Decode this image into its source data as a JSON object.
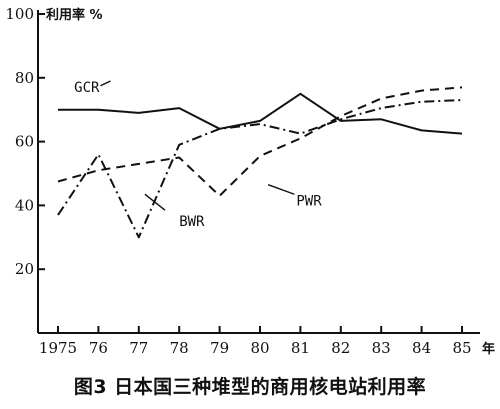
{
  "caption": "图3  日本国三种堆型的商用核电站利用率",
  "chart_data": {
    "type": "line",
    "title": "",
    "xlabel": "年",
    "ylabel": "利用率 %",
    "ylim": [
      0,
      100
    ],
    "yticks": [
      20,
      40,
      60,
      80,
      100
    ],
    "ytick_labels": [
      "20",
      "40",
      "60",
      "80",
      "100"
    ],
    "x": [
      1975,
      1976,
      1977,
      1978,
      1979,
      1980,
      1981,
      1982,
      1983,
      1984,
      1985
    ],
    "xtick_labels": [
      "1975",
      "76",
      "77",
      "78",
      "79",
      "80",
      "81",
      "82",
      "83",
      "84",
      "85"
    ],
    "series": [
      {
        "name": "GCR",
        "style": "solid",
        "values": [
          70,
          70,
          69,
          70.5,
          64,
          66.5,
          75,
          66.5,
          67,
          63.5,
          62.5
        ]
      },
      {
        "name": "BWR",
        "style": "dashdot",
        "values": [
          37,
          56,
          30,
          59,
          64,
          65.5,
          62.5,
          67,
          70.5,
          72.5,
          73
        ]
      },
      {
        "name": "PWR",
        "style": "dash",
        "values": [
          47.5,
          51,
          53,
          55,
          43,
          55.5,
          61,
          68,
          73.5,
          76,
          77
        ]
      }
    ],
    "grid": false,
    "legend": "inline labels"
  }
}
